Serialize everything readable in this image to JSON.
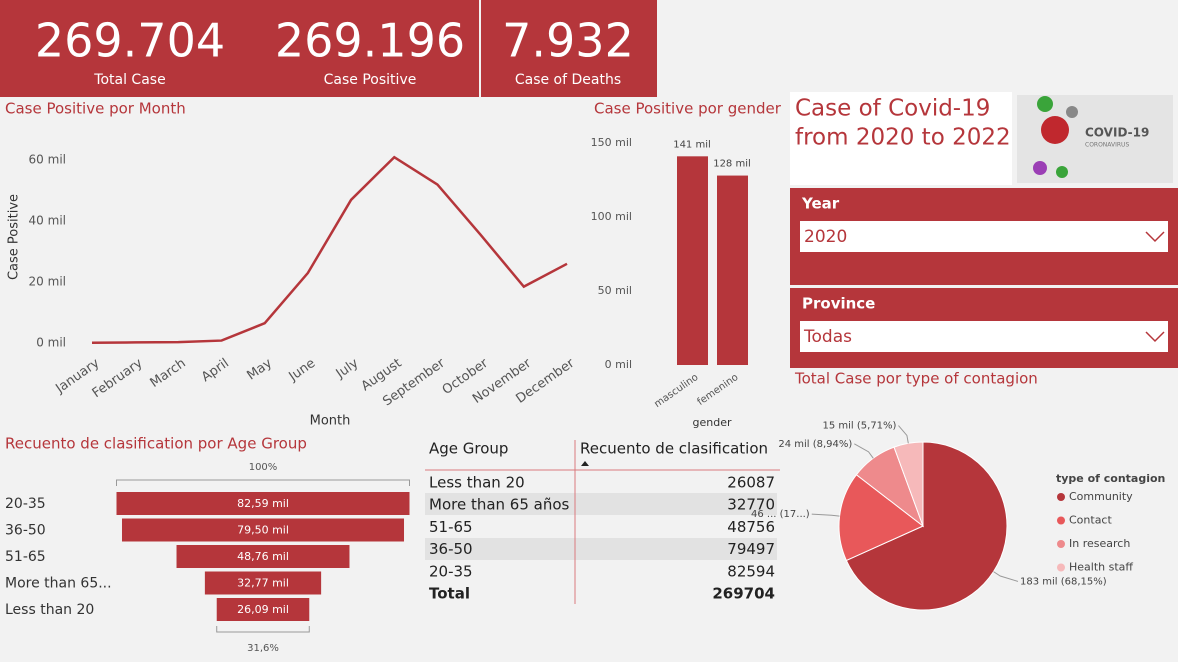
{
  "kpis": [
    {
      "value": "269.704",
      "label": "Total Case"
    },
    {
      "value": "269.196",
      "label": "Case Positive"
    },
    {
      "value": "7.932",
      "label": "Case of Deaths"
    }
  ],
  "header": {
    "title_lines": [
      "Case of Covid-19",
      "from 2020 to 2022"
    ],
    "logo_title": "COVID-19",
    "logo_subtitle": "CORONAVIRUS"
  },
  "slicers": [
    {
      "label": "Year",
      "value": "2020"
    },
    {
      "label": "Province",
      "value": "Todas"
    }
  ],
  "chart_data": [
    {
      "type": "line",
      "title": "Case Positive por Month",
      "x_label": "Month",
      "y_label": "Case Positive",
      "color": "#b5363b",
      "categories": [
        "January",
        "February",
        "March",
        "April",
        "May",
        "June",
        "July",
        "August",
        "September",
        "October",
        "November",
        "December"
      ],
      "values": [
        100,
        200,
        300,
        800,
        6500,
        23000,
        47000,
        61000,
        52000,
        35500,
        18500,
        26000
      ],
      "ylim": [
        0,
        65000
      ],
      "yticks": [
        {
          "value": 0,
          "label": "0 mil"
        },
        {
          "value": 20000,
          "label": "20 mil"
        },
        {
          "value": 40000,
          "label": "40 mil"
        },
        {
          "value": 60000,
          "label": "60 mil"
        }
      ]
    },
    {
      "type": "bar",
      "title": "Case Positive por gender",
      "x_label": "gender",
      "color": "#b5363b",
      "categories": [
        "masculino",
        "femenino"
      ],
      "values": [
        141000,
        128000
      ],
      "value_labels": [
        "141 mil",
        "128 mil"
      ],
      "ylim": [
        0,
        150000
      ],
      "yticks": [
        {
          "value": 0,
          "label": "0 mil"
        },
        {
          "value": 50000,
          "label": "50 mil"
        },
        {
          "value": 100000,
          "label": "100 mil"
        },
        {
          "value": 150000,
          "label": "150 mil"
        }
      ]
    },
    {
      "type": "funnel",
      "title": "Recuento de clasification por Age Group",
      "color": "#b5363b",
      "categories": [
        "20-35",
        "36-50",
        "51-65",
        "More than 65...",
        "Less than 20"
      ],
      "values": [
        82594,
        79497,
        48756,
        32770,
        26087
      ],
      "value_labels": [
        "82,59 mil",
        "79,50 mil",
        "48,76 mil",
        "32,77 mil",
        "26,09 mil"
      ],
      "top_label": "100%",
      "bottom_label": "31,6%"
    },
    {
      "type": "pie",
      "title": "Total Case por type of contagion",
      "legend_title": "type of contagion",
      "categories": [
        "Community",
        "Contact",
        "In research",
        "Health staff"
      ],
      "values": [
        183000,
        46000,
        24000,
        15000
      ],
      "value_labels": [
        "183 mil (68,15%)",
        "46 ... (17...)",
        "24 mil (8,94%)",
        "15 mil (5,71%)"
      ],
      "colors": [
        "#b5363b",
        "#e8585a",
        "#ee8a8c",
        "#f6b9ba"
      ]
    }
  ],
  "table": {
    "headers": [
      "Age Group",
      "Recuento de clasification"
    ],
    "rows": [
      [
        "Less than 20",
        "26087"
      ],
      [
        "More than 65 años",
        "32770"
      ],
      [
        "51-65",
        "48756"
      ],
      [
        "36-50",
        "79497"
      ],
      [
        "20-35",
        "82594"
      ]
    ],
    "total": [
      "Total",
      "269704"
    ]
  }
}
